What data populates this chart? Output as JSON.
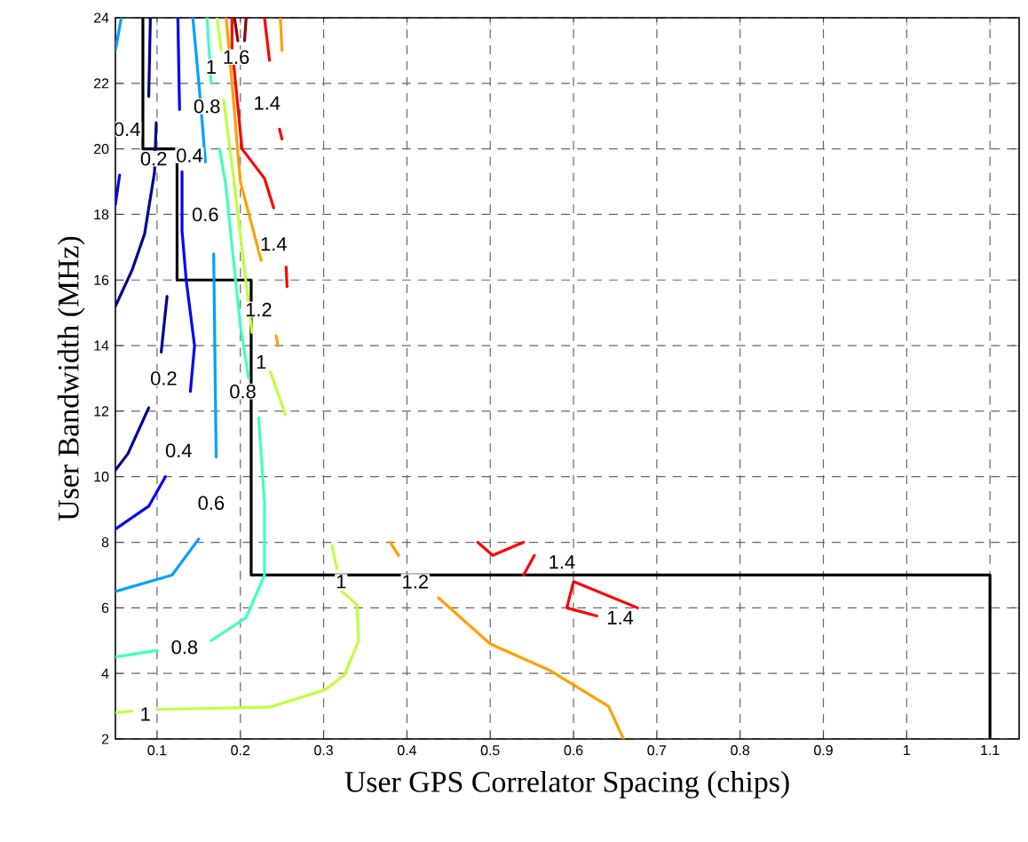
{
  "chart_data": {
    "type": "line",
    "xlabel": "User GPS Correlator Spacing (chips)",
    "ylabel": "User Bandwidth (MHz)",
    "xlim": [
      0.05,
      1.135
    ],
    "ylim": [
      2,
      24
    ],
    "xticks": [
      0.1,
      0.2,
      0.3,
      0.4,
      0.5,
      0.6,
      0.7,
      0.8,
      0.9,
      1,
      1.1
    ],
    "yticks": [
      2,
      4,
      6,
      8,
      10,
      12,
      14,
      16,
      18,
      20,
      22,
      24
    ],
    "grid": true,
    "line_style": "solid",
    "marker": "none",
    "series": [
      {
        "color": "#000000",
        "x": [
          0.083,
          0.083,
          0.124,
          0.124,
          0.213,
          0.213,
          1.1,
          1.1
        ],
        "values": [
          24,
          20,
          20,
          16,
          16,
          7,
          7,
          2
        ]
      },
      {
        "color": "#000090",
        "x": [
          0.092,
          0.09,
          null,
          0.099,
          0.097,
          0.085,
          0.07,
          0.05,
          null,
          0.05,
          0.065,
          0.09,
          null,
          0.105,
          0.112
        ],
        "values": [
          24,
          21.6,
          null,
          20.8,
          19.3,
          17.4,
          16.3,
          15.2,
          null,
          10.2,
          10.7,
          12.1,
          null,
          13.8,
          15.5
        ]
      },
      {
        "color": "#0000ff",
        "x": [
          0.125,
          0.127,
          null,
          0.13,
          0.13,
          0.135,
          0.145,
          0.14,
          null,
          0.11,
          0.09,
          0.05,
          null,
          0.05,
          0.055
        ],
        "values": [
          24,
          21.2,
          null,
          19.3,
          17.5,
          16,
          14,
          12.6,
          null,
          10,
          9.1,
          8.4,
          null,
          18.3,
          19.2
        ]
      },
      {
        "color": "#00a0ff",
        "x": [
          0.05,
          0.057,
          null,
          0.143,
          0.152,
          0.158,
          null,
          0.168,
          0.17,
          0.171,
          null,
          0.15,
          0.118,
          0.05
        ],
        "values": [
          23,
          24,
          null,
          24,
          21.5,
          19.6,
          null,
          16.8,
          12.5,
          10.6,
          null,
          8.1,
          7,
          6.5
        ]
      },
      {
        "color": "#40ffc0",
        "x": [
          0.16,
          0.165,
          null,
          0.175,
          0.182,
          0.2,
          0.21,
          null,
          0.222,
          0.229,
          0.229,
          0.207,
          0.165,
          null,
          0.1,
          0.05
        ],
        "values": [
          24,
          22,
          null,
          20,
          19,
          14.6,
          13,
          null,
          11.8,
          9.2,
          7,
          5.7,
          5,
          null,
          4.7,
          4.5
        ]
      },
      {
        "color": "#c0ff40",
        "x": [
          0.172,
          0.177,
          null,
          0.18,
          0.19,
          0.214,
          null,
          0.236,
          0.254,
          null,
          0.31,
          0.316,
          null,
          0.322,
          0.34,
          0.342,
          0.325,
          0.302,
          0.235,
          0.1,
          null,
          0.07,
          0.05
        ],
        "values": [
          24,
          23,
          null,
          21.5,
          19.5,
          14.4,
          null,
          13.2,
          11.9,
          null,
          7.9,
          7.2,
          null,
          6.5,
          6.1,
          5,
          3.95,
          3.5,
          2.97,
          2.9,
          null,
          2.85,
          2.8
        ]
      },
      {
        "color": "#ffa000",
        "x": [
          0.183,
          0.19,
          0.2,
          0.225,
          null,
          0.243,
          0.245,
          null,
          0.248,
          0.25,
          null,
          0.38,
          0.39,
          null,
          0.438,
          0.5,
          0.571,
          0.642,
          0.66
        ],
        "values": [
          24,
          22,
          19,
          16.6,
          null,
          14.3,
          14,
          null,
          24,
          23,
          null,
          8,
          7.6,
          null,
          6.3,
          4.9,
          4.1,
          3,
          2
        ]
      },
      {
        "color": "#ff0000",
        "x": [
          0.19,
          0.19,
          0.202,
          0.229,
          0.24,
          null,
          0.255,
          0.256,
          null,
          0.229,
          0.235,
          null,
          0.247,
          0.25,
          null,
          0.485,
          0.503,
          0.54,
          null,
          0.553,
          0.54,
          null,
          0.6,
          0.592,
          0.628,
          null,
          0.6,
          0.677
        ],
        "values": [
          24,
          23.1,
          20,
          19.1,
          18.2,
          null,
          16.4,
          15.8,
          null,
          24,
          22.7,
          null,
          20.6,
          20.3,
          null,
          8,
          7.6,
          8,
          null,
          7.6,
          7,
          null,
          6.8,
          6,
          5.75,
          null,
          6.8,
          6
        ]
      },
      {
        "color": "#900000",
        "x": [
          0.193,
          0.197,
          null,
          0.205,
          0.207
        ],
        "values": [
          24,
          23.3,
          null,
          23.3,
          24
        ]
      }
    ],
    "annotations": [
      {
        "text": "0.4",
        "x": 0.064,
        "y": 20.6
      },
      {
        "text": "0.2",
        "x": 0.096,
        "y": 19.7
      },
      {
        "text": "0.4",
        "x": 0.139,
        "y": 19.8
      },
      {
        "text": "0.6",
        "x": 0.158,
        "y": 18
      },
      {
        "text": "0.8",
        "x": 0.16,
        "y": 21.3
      },
      {
        "text": "1",
        "x": 0.165,
        "y": 22.5
      },
      {
        "text": "1.6",
        "x": 0.195,
        "y": 22.8
      },
      {
        "text": "1.4",
        "x": 0.232,
        "y": 21.4
      },
      {
        "text": "1.4",
        "x": 0.24,
        "y": 17.1
      },
      {
        "text": "1.2",
        "x": 0.222,
        "y": 15.1
      },
      {
        "text": "1",
        "x": 0.225,
        "y": 13.5
      },
      {
        "text": "0.8",
        "x": 0.203,
        "y": 12.6
      },
      {
        "text": "0.2",
        "x": 0.108,
        "y": 13
      },
      {
        "text": "0.4",
        "x": 0.126,
        "y": 10.8
      },
      {
        "text": "0.6",
        "x": 0.165,
        "y": 9.2
      },
      {
        "text": "0.8",
        "x": 0.133,
        "y": 4.8
      },
      {
        "text": "1",
        "x": 0.086,
        "y": 2.76
      },
      {
        "text": "1",
        "x": 0.321,
        "y": 6.8
      },
      {
        "text": "1.2",
        "x": 0.41,
        "y": 6.8
      },
      {
        "text": "1.4",
        "x": 0.586,
        "y": 7.4
      },
      {
        "text": "1.4",
        "x": 0.656,
        "y": 5.7
      }
    ]
  }
}
